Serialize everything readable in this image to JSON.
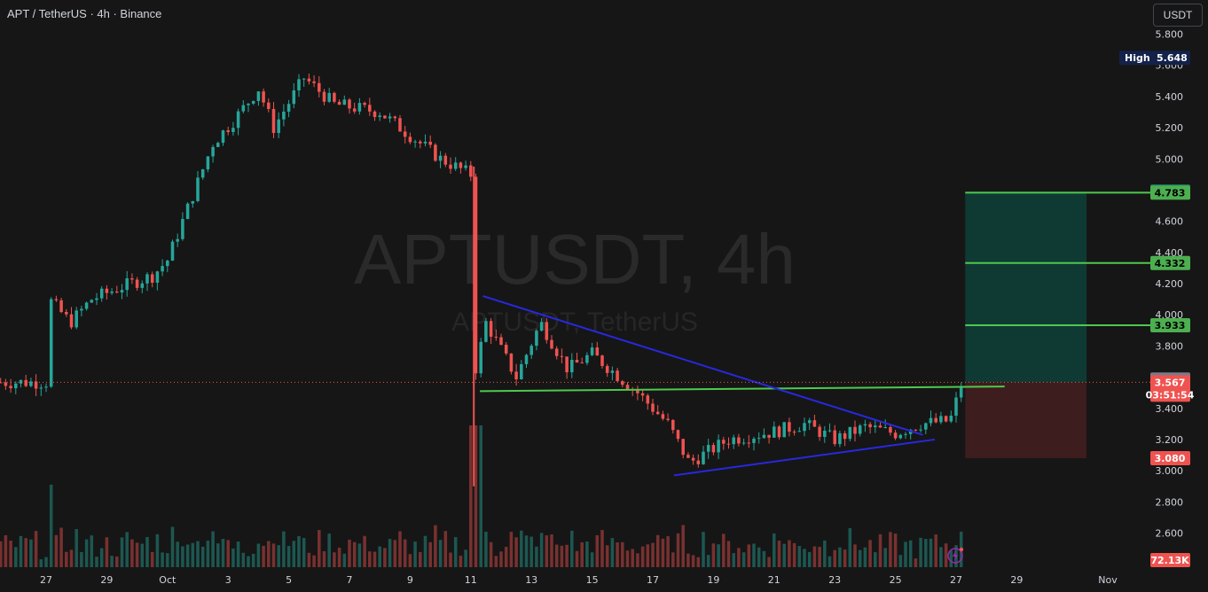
{
  "header": {
    "symbol_title": "APT / TetherUS · 4h · Binance",
    "currency_button": "USDT"
  },
  "watermark": {
    "line1": "APTUSDT, 4h",
    "line2": "APTUSDT, TetherUS"
  },
  "price_labels": {
    "high_tag": "High",
    "high_value": "5.648",
    "target_top": "4.790",
    "tp3": "4.783",
    "tp2": "4.332",
    "tp1": "3.933",
    "prev_price": "3.585",
    "current_price": "3.567",
    "countdown": "03:51:54",
    "stop_loss": "3.080",
    "volume": "72.13K"
  },
  "colors": {
    "up": "#26a69a",
    "down": "#ef5350",
    "trendline": "#2828e0",
    "support_line": "#4ec94e",
    "target_zone": "#0f3a33",
    "stop_zone": "#3d1d1d",
    "tp_badge": "#4caf50"
  },
  "chart_data": {
    "type": "candlestick",
    "symbol": "APTUSDT",
    "interval": "4h",
    "exchange": "Binance",
    "y_axis": {
      "min": 2.5,
      "max": 5.9,
      "ticks": [
        "5.800",
        "5.600",
        "5.400",
        "5.200",
        "5.000",
        "4.800",
        "4.600",
        "4.400",
        "4.200",
        "4.000",
        "3.800",
        "3.600",
        "3.400",
        "3.200",
        "3.000",
        "2.800",
        "2.600"
      ]
    },
    "x_axis": {
      "labels": [
        "27",
        "29",
        "Oct",
        "3",
        "5",
        "7",
        "9",
        "11",
        "13",
        "15",
        "17",
        "19",
        "21",
        "23",
        "25",
        "27",
        "29",
        "Nov"
      ],
      "label_day_index": [
        0,
        2,
        4,
        6,
        8,
        10,
        12,
        14,
        16,
        18,
        20,
        22,
        24,
        26,
        28,
        30,
        32,
        35
      ],
      "start_day_offset": -0.3,
      "days_visible": 37.8,
      "candles_per_day": 6
    },
    "price_path_keypoints": [
      {
        "day": 0.0,
        "price": 4.12
      },
      {
        "day": 0.8,
        "price": 3.95
      },
      {
        "day": 1.5,
        "price": 4.1
      },
      {
        "day": 2.5,
        "price": 4.18
      },
      {
        "day": 3.5,
        "price": 4.25
      },
      {
        "day": 4.0,
        "price": 4.35
      },
      {
        "day": 4.8,
        "price": 4.75
      },
      {
        "day": 5.5,
        "price": 5.1
      },
      {
        "day": 6.2,
        "price": 5.25
      },
      {
        "day": 7.0,
        "price": 5.45
      },
      {
        "day": 7.5,
        "price": 5.2
      },
      {
        "day": 8.5,
        "price": 5.52
      },
      {
        "day": 9.5,
        "price": 5.35
      },
      {
        "day": 11.0,
        "price": 5.3
      },
      {
        "day": 12.0,
        "price": 5.15
      },
      {
        "day": 13.0,
        "price": 5.0
      },
      {
        "day": 14.0,
        "price": 4.9
      },
      {
        "day": 14.1,
        "price": 3.6
      },
      {
        "day": 14.5,
        "price": 3.95
      },
      {
        "day": 15.5,
        "price": 3.6
      },
      {
        "day": 16.3,
        "price": 3.95
      },
      {
        "day": 17.2,
        "price": 3.65
      },
      {
        "day": 18.0,
        "price": 3.75
      },
      {
        "day": 19.5,
        "price": 3.5
      },
      {
        "day": 20.5,
        "price": 3.3
      },
      {
        "day": 21.2,
        "price": 3.05
      },
      {
        "day": 22.5,
        "price": 3.2
      },
      {
        "day": 24.0,
        "price": 3.25
      },
      {
        "day": 25.0,
        "price": 3.3
      },
      {
        "day": 26.0,
        "price": 3.2
      },
      {
        "day": 27.0,
        "price": 3.28
      },
      {
        "day": 28.0,
        "price": 3.24
      },
      {
        "day": 28.8,
        "price": 3.3
      },
      {
        "day": 29.8,
        "price": 3.32
      },
      {
        "day": 30.2,
        "price": 3.567
      }
    ],
    "high": 5.648,
    "current_price": 3.567,
    "drawings": {
      "descending_trendline": [
        {
          "day": 14.4,
          "price": 4.12
        },
        {
          "day": 28.9,
          "price": 3.23
        }
      ],
      "ascending_trendline": [
        {
          "day": 20.7,
          "price": 2.97
        },
        {
          "day": 29.3,
          "price": 3.2
        }
      ],
      "support_line": [
        {
          "day": 14.3,
          "price": 3.51
        },
        {
          "day": 31.6,
          "price": 3.54
        }
      ],
      "position": {
        "start_day": 30.3,
        "end_day": 34.3,
        "entry": 3.567,
        "target": 4.783,
        "stop": 3.08,
        "take_profits": [
          3.933,
          4.332,
          4.783
        ]
      }
    }
  }
}
